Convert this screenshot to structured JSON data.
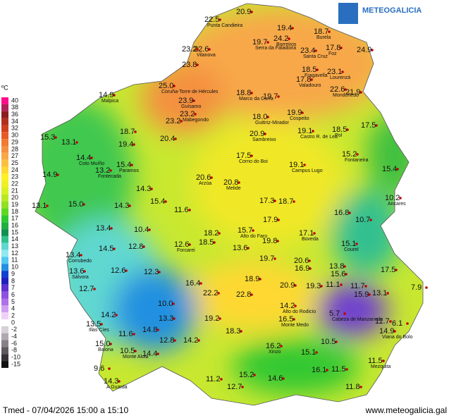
{
  "header": {
    "brand": "METEOGALICIA"
  },
  "legend": {
    "unit": "ºC",
    "entries": [
      {
        "value": 40,
        "color": "#ff0a8c"
      },
      {
        "value": 38,
        "color": "#b0205a"
      },
      {
        "value": 36,
        "color": "#8b2020"
      },
      {
        "value": 34,
        "color": "#b03020"
      },
      {
        "value": 32,
        "color": "#d04020"
      },
      {
        "value": 30,
        "color": "#e85a28"
      },
      {
        "value": 29,
        "color": "#f07a30"
      },
      {
        "value": 28,
        "color": "#f49040"
      },
      {
        "value": 27,
        "color": "#f8a848"
      },
      {
        "value": 25,
        "color": "#fcc040"
      },
      {
        "value": 24,
        "color": "#ffd830"
      },
      {
        "value": 23,
        "color": "#fff020"
      },
      {
        "value": 22,
        "color": "#f0f020"
      },
      {
        "value": 21,
        "color": "#d8f020"
      },
      {
        "value": 20,
        "color": "#b8e820"
      },
      {
        "value": 19,
        "color": "#90e020"
      },
      {
        "value": 18,
        "color": "#60d820"
      },
      {
        "value": 17,
        "color": "#30c830"
      },
      {
        "value": 16,
        "color": "#20b040"
      },
      {
        "value": 15,
        "color": "#109050"
      },
      {
        "value": 14,
        "color": "#30c090"
      },
      {
        "value": 13,
        "color": "#60d8d0"
      },
      {
        "value": 12,
        "color": "#90e8f0"
      },
      {
        "value": 11,
        "color": "#50c8f0"
      },
      {
        "value": 10,
        "color": "#2090e0"
      },
      {
        "value": 9,
        "color": "#1040d0"
      },
      {
        "value": 8,
        "color": "#2020c0"
      },
      {
        "value": 7,
        "color": "#6030d0"
      },
      {
        "value": 6,
        "color": "#9050e0"
      },
      {
        "value": 5,
        "color": "#b070e8"
      },
      {
        "value": 4,
        "color": "#d0a0f0"
      },
      {
        "value": 2,
        "color": "#f0d0f8"
      },
      {
        "value": 0,
        "color": "#ffffff"
      },
      {
        "value": -2,
        "color": "#d8d0d8"
      },
      {
        "value": -4,
        "color": "#b0a8b0"
      },
      {
        "value": -6,
        "color": "#888088"
      },
      {
        "value": -8,
        "color": "#605860"
      },
      {
        "value": -10,
        "color": "#383038"
      },
      {
        "value": -15,
        "color": "#101010"
      }
    ]
  },
  "stations": [
    {
      "value": "22.5",
      "name": "Punta Candieira"
    },
    {
      "value": "20.9"
    },
    {
      "value": "19.4"
    },
    {
      "value": "24.2",
      "name": "Borreiros"
    },
    {
      "value": "18.7",
      "name": "Burela"
    },
    {
      "value": "19.7",
      "name": "Serra da Faladoira"
    },
    {
      "value": "22.6",
      "name": "Vilanova"
    },
    {
      "value": "23.2"
    },
    {
      "value": "23.4",
      "name": "Santa Cruz"
    },
    {
      "value": "17.8",
      "name": "Foz"
    },
    {
      "value": "24.9"
    },
    {
      "value": "23.8"
    },
    {
      "value": "18.5",
      "name": "Fragavella"
    },
    {
      "value": "23.1",
      "name": "Lourenzá"
    },
    {
      "value": "17.8",
      "name": "Valadouro"
    },
    {
      "value": "25.0",
      "name": "Coruña-Torre de Hércules"
    },
    {
      "value": "23.9",
      "name": "Guísamo"
    },
    {
      "value": "22.6",
      "name": "Mondoñedo"
    },
    {
      "value": "21.9"
    },
    {
      "value": "14.9",
      "name": "Malpica"
    },
    {
      "value": "18.8",
      "name": "Marco da Curra"
    },
    {
      "value": "19.7"
    },
    {
      "value": "23.2",
      "name": "Mabegondo"
    },
    {
      "value": "23.2"
    },
    {
      "value": "18.0",
      "name": "Guitiriz-Mirador"
    },
    {
      "value": "19.9",
      "name": "Cospeito"
    },
    {
      "value": "18.5",
      "name": "Pol"
    },
    {
      "value": "17.5"
    },
    {
      "value": "19.1",
      "name": "Castro R. de Lea"
    },
    {
      "value": "20.9",
      "name": "Sambreixo"
    },
    {
      "value": "18.7"
    },
    {
      "value": "20.4"
    },
    {
      "value": "15.3"
    },
    {
      "value": "13.1"
    },
    {
      "value": "19.4"
    },
    {
      "value": "14.4",
      "name": "Coto Muíño"
    },
    {
      "value": "13.2",
      "name": "Fontecada"
    },
    {
      "value": "15.4",
      "name": "Paramos"
    },
    {
      "value": "15.2",
      "name": "Fontaneira"
    },
    {
      "value": "17.5",
      "name": "Corno do Boi"
    },
    {
      "value": "19.1",
      "name": "Campus Lugo"
    },
    {
      "value": "15.4"
    },
    {
      "value": "14.9"
    },
    {
      "value": "20.6",
      "name": "Arzúa"
    },
    {
      "value": "20.8",
      "name": "Melide"
    },
    {
      "value": "14.3"
    },
    {
      "value": "10.2",
      "name": "Ancares"
    },
    {
      "value": "13.1"
    },
    {
      "value": "15.0"
    },
    {
      "value": "15.4"
    },
    {
      "value": "14.3"
    },
    {
      "value": "11.6"
    },
    {
      "value": "17.3"
    },
    {
      "value": "18.7"
    },
    {
      "value": "16.8"
    },
    {
      "value": "10.7"
    },
    {
      "value": "17.9"
    },
    {
      "value": "13.4"
    },
    {
      "value": "10.4"
    },
    {
      "value": "18.2"
    },
    {
      "value": "15.7",
      "name": "Alto do Faro"
    },
    {
      "value": "17.1",
      "name": "Boveda"
    },
    {
      "value": "12.6",
      "name": "Forcarei"
    },
    {
      "value": "12.8"
    },
    {
      "value": "18.5"
    },
    {
      "value": "13.6"
    },
    {
      "value": "19.8"
    },
    {
      "value": "15.1",
      "name": "Courel"
    },
    {
      "value": "13.4",
      "name": "Corrubedo"
    },
    {
      "value": "14.5"
    },
    {
      "value": "19.7"
    },
    {
      "value": "20.6"
    },
    {
      "value": "16.9"
    },
    {
      "value": "13.8"
    },
    {
      "value": "15.6"
    },
    {
      "value": "17.5"
    },
    {
      "value": "13.6",
      "name": "Sálvora"
    },
    {
      "value": "12.6"
    },
    {
      "value": "12.3"
    },
    {
      "value": "18.9"
    },
    {
      "value": "16.4"
    },
    {
      "value": "20.9"
    },
    {
      "value": "19.3"
    },
    {
      "value": "11.1"
    },
    {
      "value": "11.7"
    },
    {
      "value": "15.9"
    },
    {
      "value": "13.1"
    },
    {
      "value": "7.9"
    },
    {
      "value": "12.7"
    },
    {
      "value": "22.2"
    },
    {
      "value": "22.8"
    },
    {
      "value": "10.0"
    },
    {
      "value": "14.2",
      "name": "Alto do Rodicio"
    },
    {
      "value": "14.2"
    },
    {
      "value": "13.3"
    },
    {
      "value": "5.7",
      "name": "Cabeza de Manzaneda"
    },
    {
      "value": "11.7"
    },
    {
      "value": "6.1"
    },
    {
      "value": "16.5",
      "name": "Monte Medo"
    },
    {
      "value": "19.2"
    },
    {
      "value": "13.5",
      "name": "Illas Cíes"
    },
    {
      "value": "11.6"
    },
    {
      "value": "14.8"
    },
    {
      "value": "14.9",
      "name": "Viana do Bolo"
    },
    {
      "value": "18.3"
    },
    {
      "value": "12.8"
    },
    {
      "value": "14.2"
    },
    {
      "value": "15.0",
      "name": "Baiona"
    },
    {
      "value": "10.5"
    },
    {
      "value": "16.2",
      "name": "Xinzo"
    },
    {
      "value": "10.5",
      "name": "Monte Aloia"
    },
    {
      "value": "14.4"
    },
    {
      "value": "15.1"
    },
    {
      "value": "11.5",
      "name": "Mezquita"
    },
    {
      "value": "9.6"
    },
    {
      "value": "14.3",
      "name": "A Guarda"
    },
    {
      "value": "16.1"
    },
    {
      "value": "11.5"
    },
    {
      "value": "15.2"
    },
    {
      "value": "14.6"
    },
    {
      "value": "11.2"
    },
    {
      "value": "12.7"
    },
    {
      "value": "11.8"
    }
  ],
  "footer": {
    "caption": "Tmed - 07/04/2026 15:00 a 15:10",
    "url": "www.meteogalicia.gal"
  }
}
